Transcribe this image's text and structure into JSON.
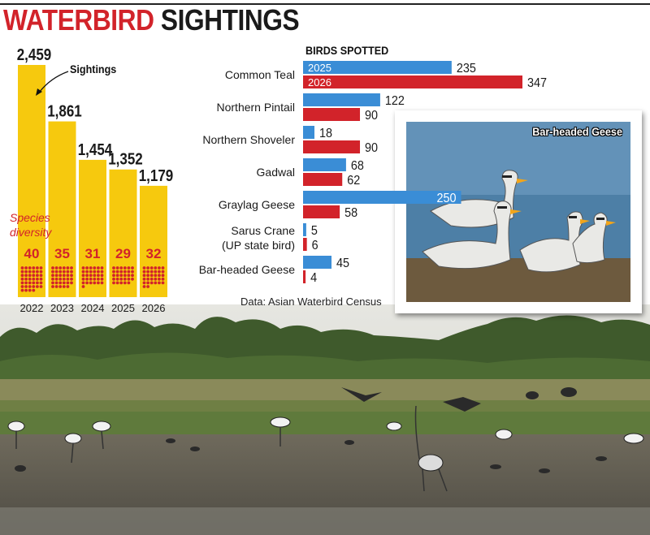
{
  "title": {
    "word1": "WATERBIRD",
    "word2": "SIGHTINGS"
  },
  "colors": {
    "yellow": "#f6c90e",
    "red": "#d2232a",
    "blue": "#3a8dd6",
    "dark": "#1a1a1a"
  },
  "sightings_annotation": "Sightings",
  "species_annotation": {
    "line1": "Species",
    "line2": "diversity"
  },
  "birds_header": "BIRDS SPOTTED",
  "source": "Data: Asian Waterbird Census",
  "inset_label": "Bar-headed Geese",
  "chart_data": [
    {
      "type": "bar",
      "title": "",
      "categories": [
        "2022",
        "2023",
        "2024",
        "2025",
        "2026"
      ],
      "series": [
        {
          "name": "Sightings",
          "values": [
            2459,
            1861,
            1454,
            1352,
            1179
          ],
          "labels": [
            "2,459",
            "1,861",
            "1,454",
            "1,352",
            "1,179"
          ]
        },
        {
          "name": "Species diversity",
          "values": [
            40,
            35,
            31,
            29,
            32
          ]
        }
      ],
      "ylim": [
        0,
        2459
      ]
    },
    {
      "type": "bar",
      "orientation": "horizontal",
      "title": "BIRDS SPOTTED",
      "categories": [
        "Common Teal",
        "Northern Pintail",
        "Northern Shoveler",
        "Gadwal",
        "Graylag Geese",
        "Sarus Crane (UP state bird)",
        "Bar-headed Geese"
      ],
      "category_lines": [
        [
          "Common Teal"
        ],
        [
          "Northern Pintail"
        ],
        [
          "Northern Shoveler"
        ],
        [
          "Gadwal"
        ],
        [
          "Graylag Geese"
        ],
        [
          "Sarus Crane",
          "(UP state bird)"
        ],
        [
          "Bar-headed Geese"
        ]
      ],
      "series": [
        {
          "name": "2025",
          "values": [
            235,
            122,
            18,
            68,
            250,
            5,
            45
          ]
        },
        {
          "name": "2026",
          "values": [
            347,
            90,
            90,
            62,
            58,
            6,
            4
          ]
        }
      ],
      "xlim": [
        0,
        347
      ],
      "legend": "inside-first-bars"
    }
  ]
}
